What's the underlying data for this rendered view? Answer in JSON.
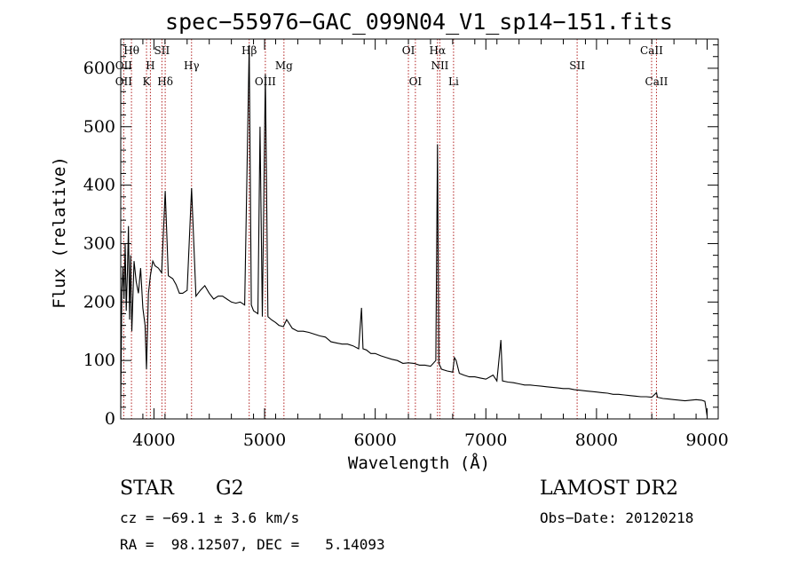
{
  "chart_data": {
    "type": "line",
    "title": "spec−55976−GAC_099N04_V1_sp14−151.fits",
    "xlabel": "Wavelength (Å)",
    "ylabel": "Flux (relative)",
    "xlim": [
      3700,
      9100
    ],
    "ylim": [
      0,
      650
    ],
    "xticks": [
      4000,
      5000,
      6000,
      7000,
      8000,
      9000
    ],
    "yticks": [
      0,
      100,
      200,
      300,
      400,
      500,
      600
    ],
    "series": [
      {
        "x": [
          3700,
          3710,
          3720,
          3730,
          3740,
          3750,
          3760,
          3770,
          3780,
          3790,
          3800,
          3820,
          3840,
          3860,
          3880,
          3900,
          3920,
          3933,
          3950,
          3968,
          3990,
          4010,
          4040,
          4070,
          4102,
          4130,
          4170,
          4200,
          4230,
          4260,
          4300,
          4340,
          4380,
          4420,
          4460,
          4500,
          4540,
          4580,
          4620,
          4660,
          4700,
          4740,
          4780,
          4820,
          4861,
          4880,
          4900,
          4940,
          4959,
          4980,
          5007,
          5030,
          5060,
          5100,
          5130,
          5170,
          5200,
          5250,
          5300,
          5350,
          5400,
          5450,
          5500,
          5550,
          5600,
          5650,
          5700,
          5750,
          5800,
          5850,
          5876,
          5890,
          5920,
          5960,
          6000,
          6050,
          6100,
          6150,
          6200,
          6250,
          6300,
          6350,
          6400,
          6450,
          6500,
          6548,
          6563,
          6575,
          6600,
          6650,
          6700,
          6716,
          6731,
          6760,
          6800,
          6850,
          6900,
          6950,
          7000,
          7065,
          7100,
          7136,
          7150,
          7200,
          7250,
          7300,
          7350,
          7400,
          7450,
          7500,
          7550,
          7600,
          7650,
          7700,
          7750,
          7800,
          7850,
          7900,
          7950,
          8000,
          8050,
          8100,
          8150,
          8200,
          8250,
          8300,
          8350,
          8400,
          8450,
          8500,
          8542,
          8550,
          8600,
          8650,
          8700,
          8750,
          8800,
          8850,
          8900,
          8950,
          8980,
          9000
        ],
        "y": [
          20,
          215,
          260,
          205,
          300,
          185,
          250,
          330,
          170,
          280,
          150,
          270,
          235,
          215,
          258,
          190,
          160,
          85,
          215,
          245,
          270,
          262,
          258,
          250,
          390,
          245,
          240,
          230,
          215,
          215,
          220,
          395,
          210,
          220,
          228,
          215,
          205,
          210,
          210,
          205,
          200,
          198,
          200,
          195,
          640,
          195,
          185,
          180,
          500,
          175,
          590,
          175,
          170,
          165,
          160,
          158,
          170,
          155,
          150,
          150,
          148,
          145,
          142,
          140,
          132,
          130,
          128,
          128,
          125,
          120,
          190,
          120,
          118,
          112,
          112,
          108,
          105,
          102,
          100,
          95,
          96,
          95,
          92,
          92,
          90,
          100,
          470,
          95,
          85,
          82,
          80,
          105,
          100,
          78,
          75,
          72,
          72,
          70,
          68,
          75,
          65,
          135,
          65,
          63,
          62,
          60,
          58,
          58,
          57,
          56,
          55,
          54,
          53,
          52,
          52,
          50,
          49,
          48,
          47,
          46,
          45,
          44,
          42,
          42,
          41,
          40,
          39,
          38,
          38,
          37,
          45,
          37,
          35,
          34,
          33,
          32,
          31,
          32,
          33,
          32,
          30,
          5
        ]
      }
    ],
    "spectral_lines": [
      {
        "label": "Hθ",
        "x": 3797,
        "row": 1
      },
      {
        "label": "OII",
        "x": 3727,
        "row": 2
      },
      {
        "label": "OII",
        "x": 3727,
        "row": 3
      },
      {
        "label": "H",
        "x": 3968,
        "row": 2
      },
      {
        "label": "K",
        "x": 3933,
        "row": 3
      },
      {
        "label": "SII",
        "x": 4072,
        "row": 1
      },
      {
        "label": "Hδ",
        "x": 4102,
        "row": 3
      },
      {
        "label": "Hγ",
        "x": 4340,
        "row": 2
      },
      {
        "label": "Hβ",
        "x": 4861,
        "row": 1
      },
      {
        "label": "OIII",
        "x": 5007,
        "row": 3
      },
      {
        "label": "Mg",
        "x": 5175,
        "row": 2
      },
      {
        "label": "OI",
        "x": 6300,
        "row": 1
      },
      {
        "label": "OI",
        "x": 6363,
        "row": 3
      },
      {
        "label": "Hα",
        "x": 6563,
        "row": 1
      },
      {
        "label": "NII",
        "x": 6584,
        "row": 2
      },
      {
        "label": "Li",
        "x": 6708,
        "row": 3
      },
      {
        "label": "SII",
        "x": 7825,
        "row": 2
      },
      {
        "label": "CaII",
        "x": 8498,
        "row": 1
      },
      {
        "label": "CaII",
        "x": 8542,
        "row": 3
      }
    ]
  },
  "info": {
    "object_class": "STAR",
    "subclass": "G2",
    "survey": "LAMOST DR2",
    "redshift_line": "cz = −69.1 ± 3.6 km/s",
    "obs_date_line": "Obs−Date: 20120218",
    "coords_line": "RA =  98.12507, DEC =   5.14093"
  },
  "colors": {
    "axis": "#000000",
    "spectrum": "#000000",
    "line_marker": "#b22222"
  }
}
